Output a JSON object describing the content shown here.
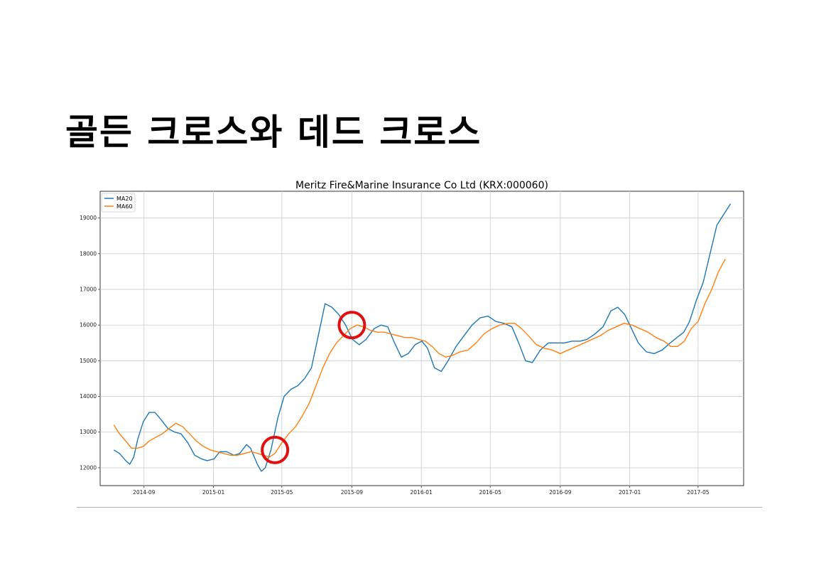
{
  "slide": {
    "title": "골든 크로스와 데드 크로스"
  },
  "chart_data": {
    "type": "line",
    "title": "Meritz Fire&Marine Insurance Co Ltd (KRX:000060)",
    "xlabel": "",
    "ylabel": "",
    "grid": true,
    "legend_placement": "top-left",
    "x_tick_labels": [
      "2014-09",
      "2015-01",
      "2015-05",
      "2015-09",
      "2016-01",
      "2016-05",
      "2016-09",
      "2017-01",
      "2017-05"
    ],
    "y_tick_labels": [
      "12000",
      "13000",
      "14000",
      "15000",
      "16000",
      "17000",
      "18000",
      "19000"
    ],
    "ylim": [
      11500,
      19750
    ],
    "xlim": [
      "2014-06-16",
      "2017-07-20"
    ],
    "series": [
      {
        "name": "MA20",
        "color": "#1f77b4",
        "points": [
          [
            "2014-07-10",
            12500
          ],
          [
            "2014-07-20",
            12400
          ],
          [
            "2014-07-31",
            12200
          ],
          [
            "2014-08-07",
            12100
          ],
          [
            "2014-08-14",
            12300
          ],
          [
            "2014-08-21",
            12800
          ],
          [
            "2014-08-31",
            13300
          ],
          [
            "2014-09-10",
            13550
          ],
          [
            "2014-09-20",
            13550
          ],
          [
            "2014-10-01",
            13350
          ],
          [
            "2014-10-13",
            13100
          ],
          [
            "2014-10-25",
            13000
          ],
          [
            "2014-11-05",
            12950
          ],
          [
            "2014-11-17",
            12700
          ],
          [
            "2014-11-29",
            12350
          ],
          [
            "2014-12-11",
            12250
          ],
          [
            "2014-12-21",
            12200
          ],
          [
            "2015-01-02",
            12250
          ],
          [
            "2015-01-12",
            12450
          ],
          [
            "2015-01-24",
            12450
          ],
          [
            "2015-02-06",
            12350
          ],
          [
            "2015-02-16",
            12400
          ],
          [
            "2015-02-28",
            12650
          ],
          [
            "2015-03-07",
            12550
          ],
          [
            "2015-03-19",
            12100
          ],
          [
            "2015-03-26",
            11900
          ],
          [
            "2015-04-02",
            12000
          ],
          [
            "2015-04-12",
            12500
          ],
          [
            "2015-04-24",
            13400
          ],
          [
            "2015-05-05",
            14000
          ],
          [
            "2015-05-17",
            14200
          ],
          [
            "2015-05-29",
            14300
          ],
          [
            "2015-06-10",
            14500
          ],
          [
            "2015-06-22",
            14800
          ],
          [
            "2015-07-04",
            15700
          ],
          [
            "2015-07-16",
            16600
          ],
          [
            "2015-07-28",
            16500
          ],
          [
            "2015-08-09",
            16300
          ],
          [
            "2015-08-21",
            16000
          ],
          [
            "2015-09-02",
            15600
          ],
          [
            "2015-09-14",
            15450
          ],
          [
            "2015-09-26",
            15600
          ],
          [
            "2015-10-10",
            15900
          ],
          [
            "2015-10-22",
            16000
          ],
          [
            "2015-11-03",
            15950
          ],
          [
            "2015-11-15",
            15500
          ],
          [
            "2015-11-27",
            15100
          ],
          [
            "2015-12-09",
            15200
          ],
          [
            "2015-12-21",
            15450
          ],
          [
            "2016-01-02",
            15550
          ],
          [
            "2016-01-12",
            15350
          ],
          [
            "2016-01-24",
            14800
          ],
          [
            "2016-02-05",
            14700
          ],
          [
            "2016-02-17",
            15000
          ],
          [
            "2016-03-02",
            15400
          ],
          [
            "2016-03-16",
            15700
          ],
          [
            "2016-03-30",
            16000
          ],
          [
            "2016-04-13",
            16200
          ],
          [
            "2016-04-27",
            16250
          ],
          [
            "2016-05-11",
            16100
          ],
          [
            "2016-05-25",
            16050
          ],
          [
            "2016-06-08",
            15950
          ],
          [
            "2016-06-20",
            15500
          ],
          [
            "2016-07-02",
            15000
          ],
          [
            "2016-07-14",
            14950
          ],
          [
            "2016-07-28",
            15300
          ],
          [
            "2016-08-11",
            15500
          ],
          [
            "2016-08-25",
            15500
          ],
          [
            "2016-09-08",
            15500
          ],
          [
            "2016-09-22",
            15550
          ],
          [
            "2016-10-06",
            15550
          ],
          [
            "2016-10-18",
            15600
          ],
          [
            "2016-11-01",
            15750
          ],
          [
            "2016-11-15",
            15950
          ],
          [
            "2016-11-29",
            16400
          ],
          [
            "2016-12-11",
            16500
          ],
          [
            "2016-12-23",
            16300
          ],
          [
            "2017-01-04",
            15900
          ],
          [
            "2017-01-16",
            15500
          ],
          [
            "2017-01-30",
            15250
          ],
          [
            "2017-02-13",
            15200
          ],
          [
            "2017-02-27",
            15300
          ],
          [
            "2017-03-13",
            15500
          ],
          [
            "2017-03-25",
            15650
          ],
          [
            "2017-04-06",
            15800
          ],
          [
            "2017-04-16",
            16100
          ],
          [
            "2017-04-28",
            16700
          ],
          [
            "2017-05-10",
            17200
          ],
          [
            "2017-05-22",
            18000
          ],
          [
            "2017-06-03",
            18800
          ],
          [
            "2017-06-15",
            19100
          ],
          [
            "2017-06-27",
            19400
          ]
        ]
      },
      {
        "name": "MA60",
        "color": "#ff7f0e",
        "points": [
          [
            "2014-07-10",
            13200
          ],
          [
            "2014-07-20",
            12950
          ],
          [
            "2014-07-31",
            12750
          ],
          [
            "2014-08-10",
            12550
          ],
          [
            "2014-08-21",
            12550
          ],
          [
            "2014-08-31",
            12600
          ],
          [
            "2014-09-10",
            12750
          ],
          [
            "2014-09-21",
            12850
          ],
          [
            "2014-10-03",
            12950
          ],
          [
            "2014-10-15",
            13100
          ],
          [
            "2014-10-27",
            13250
          ],
          [
            "2014-11-08",
            13150
          ],
          [
            "2014-11-20",
            12950
          ],
          [
            "2014-12-02",
            12750
          ],
          [
            "2014-12-14",
            12600
          ],
          [
            "2014-12-26",
            12500
          ],
          [
            "2015-01-07",
            12450
          ],
          [
            "2015-01-19",
            12400
          ],
          [
            "2015-01-31",
            12350
          ],
          [
            "2015-02-12",
            12350
          ],
          [
            "2015-02-24",
            12400
          ],
          [
            "2015-03-08",
            12450
          ],
          [
            "2015-03-20",
            12400
          ],
          [
            "2015-03-30",
            12350
          ],
          [
            "2015-04-09",
            12300
          ],
          [
            "2015-04-19",
            12400
          ],
          [
            "2015-05-01",
            12700
          ],
          [
            "2015-05-13",
            12950
          ],
          [
            "2015-05-25",
            13150
          ],
          [
            "2015-06-06",
            13450
          ],
          [
            "2015-06-18",
            13800
          ],
          [
            "2015-06-30",
            14300
          ],
          [
            "2015-07-12",
            14800
          ],
          [
            "2015-07-24",
            15200
          ],
          [
            "2015-08-05",
            15500
          ],
          [
            "2015-08-17",
            15700
          ],
          [
            "2015-08-29",
            15900
          ],
          [
            "2015-09-10",
            16000
          ],
          [
            "2015-09-22",
            15950
          ],
          [
            "2015-10-04",
            15850
          ],
          [
            "2015-10-16",
            15800
          ],
          [
            "2015-10-28",
            15800
          ],
          [
            "2015-11-09",
            15750
          ],
          [
            "2015-11-21",
            15700
          ],
          [
            "2015-12-03",
            15650
          ],
          [
            "2015-12-15",
            15650
          ],
          [
            "2015-12-27",
            15600
          ],
          [
            "2016-01-08",
            15550
          ],
          [
            "2016-01-20",
            15400
          ],
          [
            "2016-02-01",
            15200
          ],
          [
            "2016-02-13",
            15100
          ],
          [
            "2016-02-25",
            15150
          ],
          [
            "2016-03-09",
            15250
          ],
          [
            "2016-03-23",
            15300
          ],
          [
            "2016-04-06",
            15500
          ],
          [
            "2016-04-20",
            15750
          ],
          [
            "2016-05-04",
            15900
          ],
          [
            "2016-05-18",
            16000
          ],
          [
            "2016-06-01",
            16050
          ],
          [
            "2016-06-13",
            16050
          ],
          [
            "2016-06-25",
            15900
          ],
          [
            "2016-07-07",
            15700
          ],
          [
            "2016-07-21",
            15450
          ],
          [
            "2016-08-04",
            15350
          ],
          [
            "2016-08-18",
            15300
          ],
          [
            "2016-09-01",
            15200
          ],
          [
            "2016-09-15",
            15300
          ],
          [
            "2016-09-29",
            15400
          ],
          [
            "2016-10-13",
            15500
          ],
          [
            "2016-10-27",
            15600
          ],
          [
            "2016-11-10",
            15700
          ],
          [
            "2016-11-24",
            15850
          ],
          [
            "2016-12-08",
            15950
          ],
          [
            "2016-12-22",
            16050
          ],
          [
            "2017-01-05",
            16000
          ],
          [
            "2017-01-19",
            15900
          ],
          [
            "2017-02-02",
            15800
          ],
          [
            "2017-02-16",
            15650
          ],
          [
            "2017-03-02",
            15550
          ],
          [
            "2017-03-14",
            15400
          ],
          [
            "2017-03-26",
            15400
          ],
          [
            "2017-04-07",
            15550
          ],
          [
            "2017-04-19",
            15900
          ],
          [
            "2017-05-01",
            16100
          ],
          [
            "2017-05-13",
            16600
          ],
          [
            "2017-05-25",
            17000
          ],
          [
            "2017-06-06",
            17500
          ],
          [
            "2017-06-18",
            17850
          ]
        ]
      }
    ],
    "annotations": [
      {
        "type": "circle",
        "x": "2015-04-19",
        "y": 12500,
        "color": "#e01010"
      },
      {
        "type": "circle",
        "x": "2015-09-01",
        "y": 16000,
        "color": "#e01010"
      }
    ]
  }
}
